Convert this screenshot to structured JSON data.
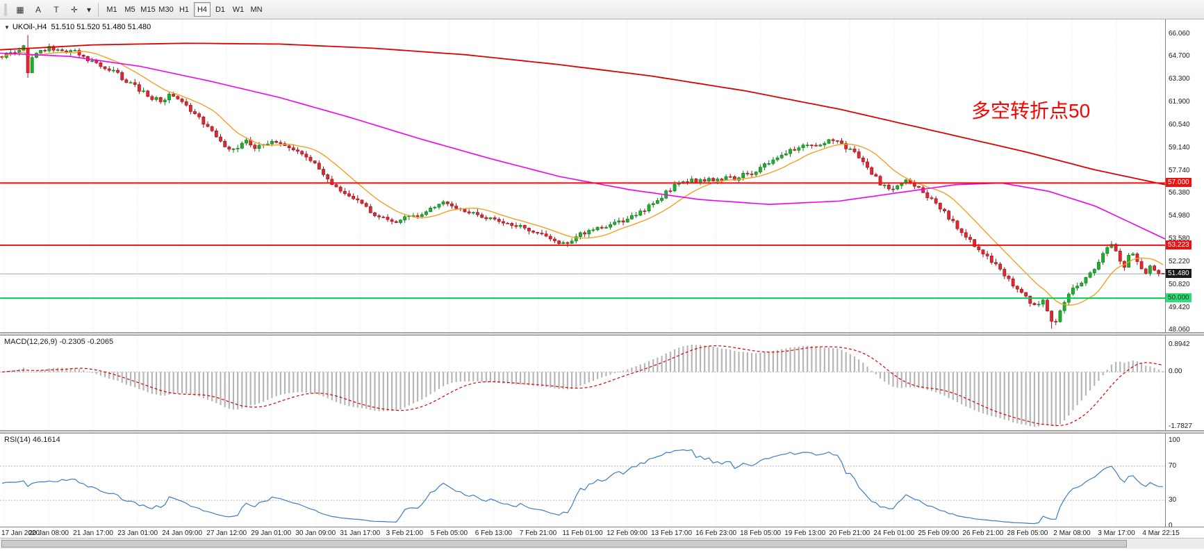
{
  "toolbar": {
    "icons": [
      {
        "name": "chart-grid-icon",
        "glyph": "▦"
      },
      {
        "name": "annotation-letter-icon",
        "glyph": "A"
      },
      {
        "name": "text-tool-icon",
        "glyph": "T"
      },
      {
        "name": "crosshair-tool-icon",
        "glyph": "✛"
      },
      {
        "name": "cursor-dropdown-caret-icon",
        "glyph": "▾"
      }
    ],
    "timeframes": [
      "M1",
      "M5",
      "M15",
      "M30",
      "H1",
      "H4",
      "D1",
      "W1",
      "MN"
    ],
    "active_timeframe": "H4"
  },
  "chart": {
    "title_line": "UKOil-,H4  51.510 51.520 51.480 51.480",
    "annotation": "多空转折点50",
    "y_axis_labels": [
      "66.060",
      "64.700",
      "63.300",
      "61.900",
      "60.540",
      "59.140",
      "57.740",
      "56.380",
      "54.980",
      "53.580",
      "52.220",
      "50.820",
      "49.420",
      "48.060"
    ]
  },
  "macd_panel": {
    "label": "MACD(12,26,9) -0.2305 -0.2065",
    "axis_labels": [
      "0.8942",
      "0.00",
      "-1.7827"
    ]
  },
  "rsi_panel": {
    "label": "RSI(14) 46.1614",
    "axis_labels": [
      "100",
      "70",
      "30",
      "0"
    ]
  },
  "time_axis": {
    "labels": [
      "17 Jan 2020",
      "20 Jan 08:00",
      "21 Jan 17:00",
      "23 Jan 01:00",
      "24 Jan 09:00",
      "27 Jan 12:00",
      "29 Jan 01:00",
      "30 Jan 09:00",
      "31 Jan 17:00",
      "3 Feb 21:00",
      "5 Feb 05:00",
      "6 Feb 13:00",
      "7 Feb 21:00",
      "11 Feb 01:00",
      "12 Feb 09:00",
      "13 Feb 17:00",
      "16 Feb 23:00",
      "18 Feb 05:00",
      "19 Feb 13:00",
      "20 Feb 21:00",
      "24 Feb 01:00",
      "25 Feb 09:00",
      "26 Feb 21:00",
      "28 Feb 05:00",
      "2 Mar 08:00",
      "3 Mar 17:00",
      "4 Mar 22:15"
    ]
  },
  "chart_data": {
    "type": "candlestick",
    "symbol": "UKOil-",
    "timeframe": "H4",
    "bars": 272,
    "price_axis_range": [
      48.06,
      66.06
    ],
    "current_bar_ohlc": {
      "open": 51.51,
      "high": 51.52,
      "low": 51.48,
      "close": 51.48
    },
    "hlines": [
      {
        "price": 57.0,
        "label": "57.000",
        "color": "#ee1111",
        "width": 2,
        "tag_bg": "#ee1111",
        "tag_text": "#ffffff"
      },
      {
        "price": 53.223,
        "label": "53.223",
        "color": "#ee1111",
        "width": 2,
        "tag_bg": "#ee1111",
        "tag_text": "#ffffff"
      },
      {
        "price": 50.0,
        "label": "50.000",
        "color": "#00cc55",
        "width": 2,
        "tag_bg": "#2edd77",
        "tag_text": "#063311"
      },
      {
        "price": 51.48,
        "label": "51.480",
        "color": "#93aabb",
        "width": 1,
        "tag_bg": "#1a1a1a",
        "tag_text": "#ffffff"
      }
    ],
    "close_path_anchors": [
      [
        0,
        64.7
      ],
      [
        2,
        64.9
      ],
      [
        4,
        65.1
      ],
      [
        5,
        65.3
      ],
      [
        6,
        63.8
      ],
      [
        7,
        64.6
      ],
      [
        9,
        65.0
      ],
      [
        11,
        65.2
      ],
      [
        13,
        65.0
      ],
      [
        15,
        64.9
      ],
      [
        17,
        65.0
      ],
      [
        19,
        64.6
      ],
      [
        21,
        64.4
      ],
      [
        23,
        64.2
      ],
      [
        25,
        63.9
      ],
      [
        27,
        63.6
      ],
      [
        29,
        63.2
      ],
      [
        31,
        62.9
      ],
      [
        33,
        62.5
      ],
      [
        35,
        62.2
      ],
      [
        37,
        62.0
      ],
      [
        39,
        62.3
      ],
      [
        41,
        62.1
      ],
      [
        43,
        61.7
      ],
      [
        45,
        61.2
      ],
      [
        47,
        60.6
      ],
      [
        49,
        60.1
      ],
      [
        51,
        59.5
      ],
      [
        53,
        59.1
      ],
      [
        55,
        59.2
      ],
      [
        57,
        59.5
      ],
      [
        59,
        59.2
      ],
      [
        61,
        59.4
      ],
      [
        63,
        59.6
      ],
      [
        65,
        59.4
      ],
      [
        67,
        59.2
      ],
      [
        69,
        58.9
      ],
      [
        71,
        58.6
      ],
      [
        73,
        58.2
      ],
      [
        75,
        57.6
      ],
      [
        77,
        57.0
      ],
      [
        79,
        56.6
      ],
      [
        81,
        56.3
      ],
      [
        83,
        55.9
      ],
      [
        85,
        55.5
      ],
      [
        87,
        55.1
      ],
      [
        89,
        54.8
      ],
      [
        91,
        54.6
      ],
      [
        93,
        54.8
      ],
      [
        95,
        55.1
      ],
      [
        97,
        55.0
      ],
      [
        99,
        55.2
      ],
      [
        101,
        55.6
      ],
      [
        103,
        55.9
      ],
      [
        105,
        55.7
      ],
      [
        107,
        55.4
      ],
      [
        109,
        55.3
      ],
      [
        111,
        55.1
      ],
      [
        113,
        54.9
      ],
      [
        115,
        54.8
      ],
      [
        117,
        54.6
      ],
      [
        119,
        54.5
      ],
      [
        121,
        54.3
      ],
      [
        123,
        54.1
      ],
      [
        125,
        53.9
      ],
      [
        127,
        53.7
      ],
      [
        129,
        53.5
      ],
      [
        131,
        53.3
      ],
      [
        133,
        53.6
      ],
      [
        135,
        53.9
      ],
      [
        137,
        54.1
      ],
      [
        139,
        54.2
      ],
      [
        141,
        54.4
      ],
      [
        143,
        54.5
      ],
      [
        145,
        54.7
      ],
      [
        147,
        54.9
      ],
      [
        149,
        55.2
      ],
      [
        151,
        55.6
      ],
      [
        153,
        56.0
      ],
      [
        155,
        56.4
      ],
      [
        157,
        56.8
      ],
      [
        159,
        57.0
      ],
      [
        161,
        57.2
      ],
      [
        163,
        57.1
      ],
      [
        165,
        57.3
      ],
      [
        167,
        57.2
      ],
      [
        169,
        57.4
      ],
      [
        171,
        57.3
      ],
      [
        173,
        57.5
      ],
      [
        175,
        57.6
      ],
      [
        177,
        57.9
      ],
      [
        179,
        58.2
      ],
      [
        181,
        58.5
      ],
      [
        183,
        58.8
      ],
      [
        185,
        59.1
      ],
      [
        187,
        59.3
      ],
      [
        189,
        59.2
      ],
      [
        191,
        59.4
      ],
      [
        193,
        59.6
      ],
      [
        195,
        59.5
      ],
      [
        197,
        59.2
      ],
      [
        199,
        58.8
      ],
      [
        201,
        58.3
      ],
      [
        203,
        57.6
      ],
      [
        205,
        57.0
      ],
      [
        207,
        56.6
      ],
      [
        209,
        56.9
      ],
      [
        211,
        57.1
      ],
      [
        213,
        56.8
      ],
      [
        215,
        56.4
      ],
      [
        217,
        56.0
      ],
      [
        219,
        55.5
      ],
      [
        221,
        54.9
      ],
      [
        223,
        54.3
      ],
      [
        225,
        53.7
      ],
      [
        227,
        53.2
      ],
      [
        229,
        52.7
      ],
      [
        231,
        52.2
      ],
      [
        233,
        51.7
      ],
      [
        235,
        51.1
      ],
      [
        237,
        50.5
      ],
      [
        239,
        50.0
      ],
      [
        241,
        49.6
      ],
      [
        243,
        49.8
      ],
      [
        244,
        49.3
      ],
      [
        245,
        48.7
      ],
      [
        246,
        48.5
      ],
      [
        247,
        49.3
      ],
      [
        248,
        49.8
      ],
      [
        250,
        50.6
      ],
      [
        252,
        51.0
      ],
      [
        254,
        51.5
      ],
      [
        256,
        52.2
      ],
      [
        257,
        52.7
      ],
      [
        258,
        53.1
      ],
      [
        259,
        53.3
      ],
      [
        260,
        52.8
      ],
      [
        261,
        52.3
      ],
      [
        262,
        52.0
      ],
      [
        263,
        52.6
      ],
      [
        264,
        52.8
      ],
      [
        265,
        52.3
      ],
      [
        266,
        51.9
      ],
      [
        267,
        51.6
      ],
      [
        268,
        52.0
      ],
      [
        269,
        51.7
      ],
      [
        270,
        51.6
      ],
      [
        271,
        51.5
      ]
    ],
    "special_bars": [
      {
        "i": 6,
        "o": 65.2,
        "h": 66.0,
        "l": 63.4,
        "c": 63.7
      },
      {
        "i": 245,
        "l": 48.15
      },
      {
        "i": 271,
        "o": 51.51,
        "h": 51.52,
        "l": 51.48,
        "c": 51.48
      }
    ],
    "ma_fast_period": 12,
    "ma_medium_anchors": [
      [
        0,
        64.9
      ],
      [
        0.06,
        64.7
      ],
      [
        0.12,
        64.1
      ],
      [
        0.18,
        63.2
      ],
      [
        0.24,
        62.2
      ],
      [
        0.3,
        61.0
      ],
      [
        0.36,
        59.7
      ],
      [
        0.42,
        58.5
      ],
      [
        0.48,
        57.4
      ],
      [
        0.54,
        56.6
      ],
      [
        0.6,
        56.0
      ],
      [
        0.66,
        55.7
      ],
      [
        0.72,
        55.9
      ],
      [
        0.78,
        56.5
      ],
      [
        0.82,
        56.9
      ],
      [
        0.86,
        57.0
      ],
      [
        0.9,
        56.5
      ],
      [
        0.94,
        55.6
      ],
      [
        0.97,
        54.6
      ],
      [
        1,
        53.6
      ]
    ],
    "ma_slow_anchors": [
      [
        0,
        65.1
      ],
      [
        0.08,
        65.4
      ],
      [
        0.16,
        65.5
      ],
      [
        0.24,
        65.45
      ],
      [
        0.32,
        65.2
      ],
      [
        0.4,
        64.8
      ],
      [
        0.48,
        64.2
      ],
      [
        0.56,
        63.5
      ],
      [
        0.64,
        62.6
      ],
      [
        0.72,
        61.5
      ],
      [
        0.8,
        60.2
      ],
      [
        0.88,
        58.9
      ],
      [
        0.94,
        57.8
      ],
      [
        1,
        56.9
      ]
    ],
    "macd": {
      "fast": 12,
      "slow": 26,
      "signal": 9,
      "value_main": -0.2305,
      "value_signal": -0.2065,
      "axis_max": 0.8942,
      "axis_min": -1.7827
    },
    "rsi": {
      "period": 14,
      "value": 46.1614,
      "levels": [
        70,
        30
      ],
      "axis_range": [
        0,
        100
      ]
    },
    "colors": {
      "up": "#1fae2e",
      "up_dark": "#0b7a18",
      "down": "#e02830",
      "down_dark": "#991118",
      "ma_fast": "#f5a021",
      "ma_medium": "#f000f0",
      "ma_slow": "#dd0000",
      "macd_hist": "#b6b6b6",
      "macd_signal": "#dd0000",
      "rsi_line": "#3b7dc4",
      "grid": "#e4e4e4",
      "level_dotted": "#b8b8b8",
      "annotation": "#ff0000"
    }
  }
}
